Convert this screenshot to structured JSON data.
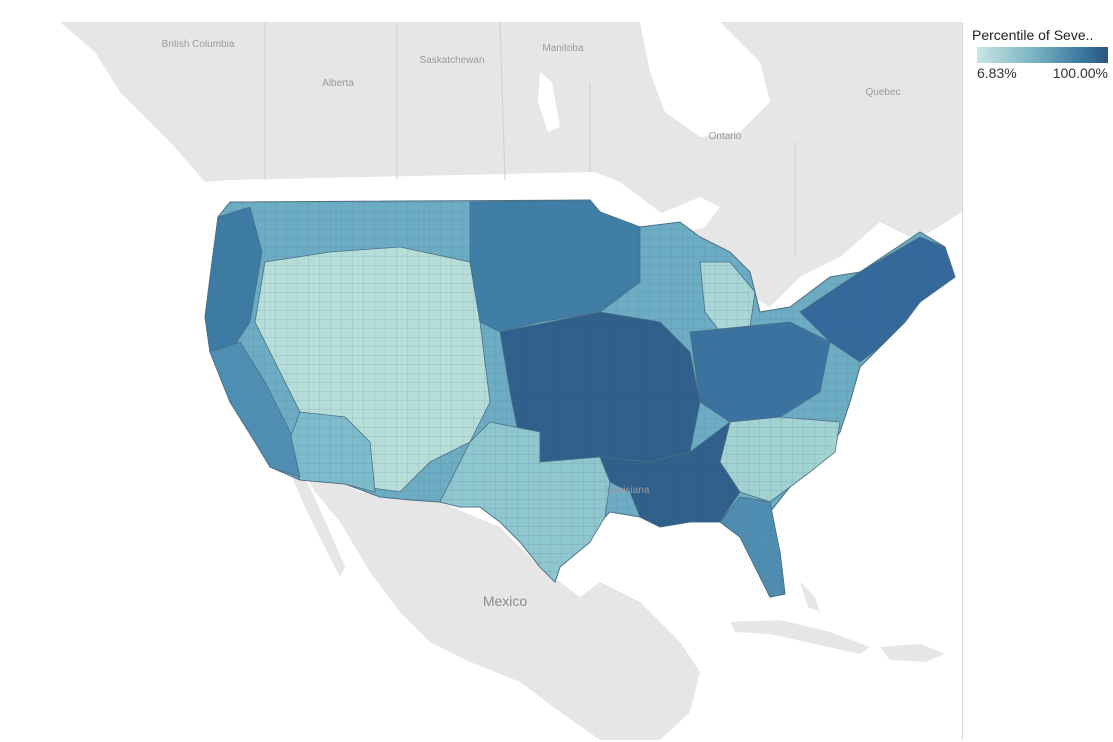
{
  "legend": {
    "title": "Percentile of Seve..",
    "min_label": "6.83%",
    "max_label": "100.00%",
    "color_low": "#c8e6e2",
    "color_high": "#2b5680"
  },
  "map": {
    "basemap_labels": [
      "British Columbia",
      "Alberta",
      "Saskatchewan",
      "Manitoba",
      "Ontario",
      "Quebec",
      "Mexico",
      "Louisiana"
    ],
    "colors": {
      "land": "#e8e8e8",
      "water": "#ffffff",
      "very_low": "#c8e6e2",
      "low": "#9dd0d4",
      "mid": "#5ea7bf",
      "high": "#3c7ba4",
      "very_high": "#2c5a85"
    }
  }
}
